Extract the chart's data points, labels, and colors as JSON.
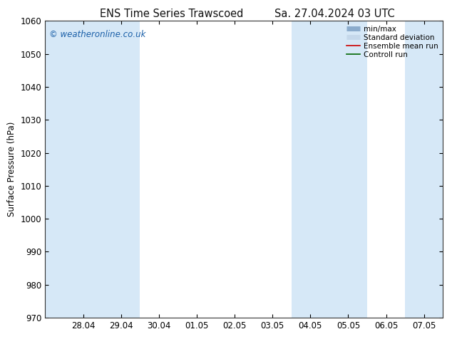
{
  "title_left": "ENS Time Series Trawscoed",
  "title_right": "Sa. 27.04.2024 03 UTC",
  "ylabel": "Surface Pressure (hPa)",
  "ylim": [
    970,
    1060
  ],
  "yticks": [
    970,
    980,
    990,
    1000,
    1010,
    1020,
    1030,
    1040,
    1050,
    1060
  ],
  "x_tick_labels": [
    "28.04",
    "29.04",
    "30.04",
    "01.05",
    "02.05",
    "03.05",
    "04.05",
    "05.05",
    "06.05",
    "07.05"
  ],
  "x_tick_positions": [
    1,
    2,
    3,
    4,
    5,
    6,
    7,
    8,
    9,
    10
  ],
  "xlim": [
    0,
    10.5
  ],
  "shaded_regions": [
    [
      0,
      0.5,
      "#d6e8f7"
    ],
    [
      0.5,
      1.5,
      "#d6e8f7"
    ],
    [
      1.5,
      2.5,
      "#d6e8f7"
    ],
    [
      2.5,
      6.5,
      "#ffffff"
    ],
    [
      6.5,
      7.5,
      "#d6e8f7"
    ],
    [
      7.5,
      8.5,
      "#d6e8f7"
    ],
    [
      8.5,
      9.5,
      "#ffffff"
    ],
    [
      9.5,
      10.5,
      "#d6e8f7"
    ]
  ],
  "watermark": "© weatheronline.co.uk",
  "watermark_color": "#1a5fa8",
  "legend_labels": [
    "min/max",
    "Standard deviation",
    "Ensemble mean run",
    "Controll run"
  ],
  "legend_line_colors": [
    "#8aabcc",
    "#b8cfe0",
    "#cc0000",
    "#006600"
  ],
  "background_color": "#ffffff",
  "title_fontsize": 10.5,
  "tick_fontsize": 8.5,
  "ylabel_fontsize": 8.5,
  "watermark_fontsize": 8.5,
  "legend_fontsize": 7.5
}
